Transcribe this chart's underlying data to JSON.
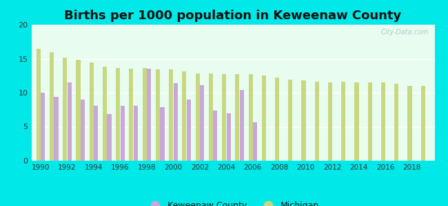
{
  "title": "Births per 1000 population in Keweenaw County",
  "years": [
    1990,
    1991,
    1992,
    1993,
    1994,
    1995,
    1996,
    1997,
    1998,
    1999,
    2000,
    2001,
    2002,
    2003,
    2004,
    2005,
    2006,
    2007,
    2008,
    2009,
    2010,
    2011,
    2012,
    2013,
    2014,
    2015,
    2016,
    2017,
    2018,
    2019
  ],
  "keweenaw": [
    10.0,
    9.4,
    11.5,
    9.0,
    8.1,
    6.9,
    8.1,
    8.1,
    13.5,
    7.9,
    11.4,
    9.0,
    11.1,
    7.4,
    7.0,
    10.4,
    5.7,
    null,
    null,
    null,
    null,
    null,
    null,
    null,
    null,
    null,
    null,
    null,
    null,
    null
  ],
  "michigan": [
    16.5,
    16.0,
    15.2,
    14.8,
    14.4,
    13.8,
    13.6,
    13.5,
    13.6,
    13.4,
    13.4,
    13.1,
    12.8,
    12.8,
    12.7,
    12.7,
    12.7,
    12.5,
    12.2,
    11.9,
    11.8,
    11.6,
    11.5,
    11.6,
    11.5,
    11.5,
    11.5,
    11.3,
    11.0,
    11.0
  ],
  "keweenaw_color": "#c8a8d8",
  "michigan_color": "#c8d880",
  "fig_bg_color": "#00e8e8",
  "plot_bg_color": "#e8fdf0",
  "ylim": [
    0,
    20
  ],
  "yticks": [
    0,
    5,
    10,
    15,
    20
  ],
  "title_fontsize": 13,
  "watermark": "City-Data.com",
  "bar_width": 0.32,
  "bar_gap": 0.02
}
